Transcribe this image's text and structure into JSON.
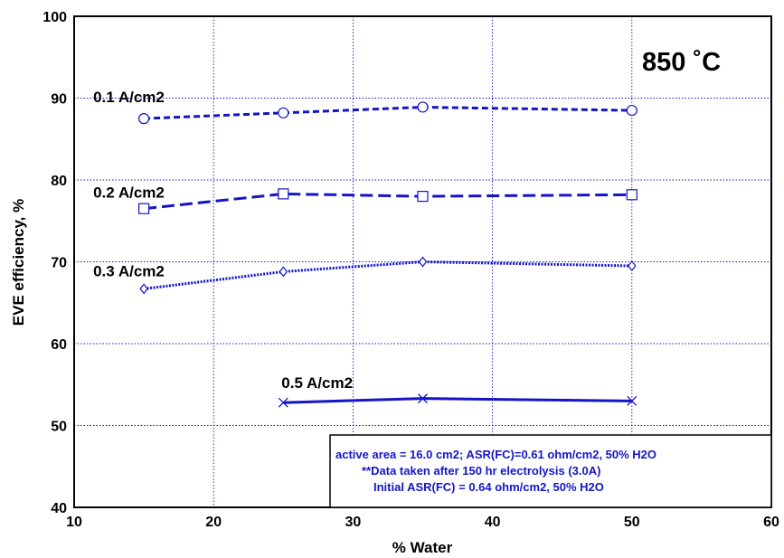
{
  "chart_data": {
    "type": "line",
    "title": "",
    "xlabel": "% Water",
    "ylabel": "EVE  efficiency, %",
    "xlim": [
      10,
      60
    ],
    "ylim": [
      40,
      100
    ],
    "x_ticks": [
      10,
      20,
      30,
      40,
      50,
      60
    ],
    "y_ticks": [
      40,
      50,
      60,
      70,
      80,
      90,
      100
    ],
    "grid": true,
    "line_color": "#1414c8",
    "series": [
      {
        "name": "0.1 A/cm2",
        "marker": "circle",
        "dash": "short",
        "x": [
          15,
          25,
          35,
          50
        ],
        "y": [
          87.5,
          88.2,
          88.9,
          88.5
        ]
      },
      {
        "name": "0.2 A/cm2",
        "marker": "square",
        "dash": "long",
        "x": [
          15,
          25,
          35,
          50
        ],
        "y": [
          76.5,
          78.3,
          78.0,
          78.2
        ]
      },
      {
        "name": "0.3 A/cm2",
        "marker": "diamond",
        "dash": "dotted",
        "x": [
          15,
          25,
          35,
          50
        ],
        "y": [
          66.7,
          68.8,
          70.0,
          69.5
        ]
      },
      {
        "name": "0.5 A/cm2",
        "marker": "cross",
        "dash": "solid",
        "x": [
          25,
          35,
          50
        ],
        "y": [
          52.8,
          53.3,
          53.0
        ]
      }
    ],
    "annotations": {
      "temperature": "850 ˚C",
      "note_lines": [
        "active area = 16.0 cm2; ASR(FC)=0.61 ohm/cm2, 50% H2O",
        "**Data taken after 150 hr electrolysis (3.0A)",
        "Initial ASR(FC) = 0.64 ohm/cm2, 50% H2O"
      ]
    }
  }
}
